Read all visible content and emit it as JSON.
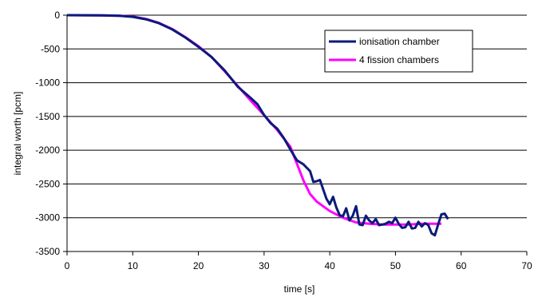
{
  "chart_data": {
    "type": "line",
    "title": "",
    "xlabel": "time [s]",
    "ylabel": "integral worth [pcm]",
    "xlim": [
      0,
      70
    ],
    "ylim": [
      -3500,
      0
    ],
    "xticks": [
      0,
      10,
      20,
      30,
      40,
      50,
      60,
      70
    ],
    "yticks": [
      0,
      -500,
      -1000,
      -1500,
      -2000,
      -2500,
      -3000,
      -3500
    ],
    "grid": "horizontal",
    "legend_position": "top-right",
    "series": [
      {
        "name": "ionisation chamber",
        "color": "#0a1a7a",
        "points": [
          [
            0,
            0
          ],
          [
            5,
            -2
          ],
          [
            8,
            -10
          ],
          [
            10,
            -25
          ],
          [
            12,
            -60
          ],
          [
            14,
            -120
          ],
          [
            16,
            -210
          ],
          [
            18,
            -330
          ],
          [
            20,
            -470
          ],
          [
            22,
            -620
          ],
          [
            24,
            -820
          ],
          [
            26,
            -1060
          ],
          [
            28,
            -1230
          ],
          [
            29,
            -1320
          ],
          [
            30,
            -1480
          ],
          [
            31,
            -1600
          ],
          [
            32,
            -1680
          ],
          [
            33,
            -1820
          ],
          [
            34,
            -1990
          ],
          [
            35,
            -2150
          ],
          [
            36,
            -2210
          ],
          [
            37,
            -2310
          ],
          [
            37.5,
            -2470
          ],
          [
            38,
            -2460
          ],
          [
            38.5,
            -2440
          ],
          [
            39,
            -2580
          ],
          [
            39.5,
            -2720
          ],
          [
            40,
            -2800
          ],
          [
            40.5,
            -2690
          ],
          [
            41,
            -2850
          ],
          [
            41.5,
            -2960
          ],
          [
            42,
            -2980
          ],
          [
            42.5,
            -2860
          ],
          [
            43,
            -3040
          ],
          [
            43.5,
            -2970
          ],
          [
            44,
            -2830
          ],
          [
            44.5,
            -3100
          ],
          [
            45,
            -3110
          ],
          [
            45.5,
            -2970
          ],
          [
            46,
            -3040
          ],
          [
            46.5,
            -3080
          ],
          [
            47,
            -3020
          ],
          [
            47.5,
            -3110
          ],
          [
            48,
            -3100
          ],
          [
            48.5,
            -3090
          ],
          [
            49,
            -3060
          ],
          [
            49.5,
            -3080
          ],
          [
            50,
            -3000
          ],
          [
            50.5,
            -3090
          ],
          [
            51,
            -3150
          ],
          [
            51.5,
            -3140
          ],
          [
            52,
            -3060
          ],
          [
            52.5,
            -3160
          ],
          [
            53,
            -3150
          ],
          [
            53.5,
            -3060
          ],
          [
            54,
            -3130
          ],
          [
            54.5,
            -3080
          ],
          [
            55,
            -3110
          ],
          [
            55.5,
            -3230
          ],
          [
            56,
            -3260
          ],
          [
            56.5,
            -3100
          ],
          [
            57,
            -2950
          ],
          [
            57.5,
            -2940
          ],
          [
            58,
            -3020
          ]
        ]
      },
      {
        "name": "4 fission chambers",
        "color": "#ff00ff",
        "points": [
          [
            0,
            0
          ],
          [
            5,
            -2
          ],
          [
            8,
            -8
          ],
          [
            10,
            -20
          ],
          [
            12,
            -55
          ],
          [
            14,
            -115
          ],
          [
            16,
            -205
          ],
          [
            18,
            -325
          ],
          [
            20,
            -460
          ],
          [
            22,
            -620
          ],
          [
            24,
            -830
          ],
          [
            26,
            -1050
          ],
          [
            28,
            -1270
          ],
          [
            30,
            -1480
          ],
          [
            32,
            -1700
          ],
          [
            34,
            -1950
          ],
          [
            35,
            -2200
          ],
          [
            36,
            -2450
          ],
          [
            37,
            -2650
          ],
          [
            38,
            -2760
          ],
          [
            40,
            -2900
          ],
          [
            42,
            -3000
          ],
          [
            44,
            -3070
          ],
          [
            46,
            -3090
          ],
          [
            48,
            -3100
          ],
          [
            50,
            -3100
          ],
          [
            52,
            -3100
          ],
          [
            54,
            -3090
          ],
          [
            56,
            -3090
          ],
          [
            57,
            -3090
          ]
        ]
      }
    ]
  }
}
